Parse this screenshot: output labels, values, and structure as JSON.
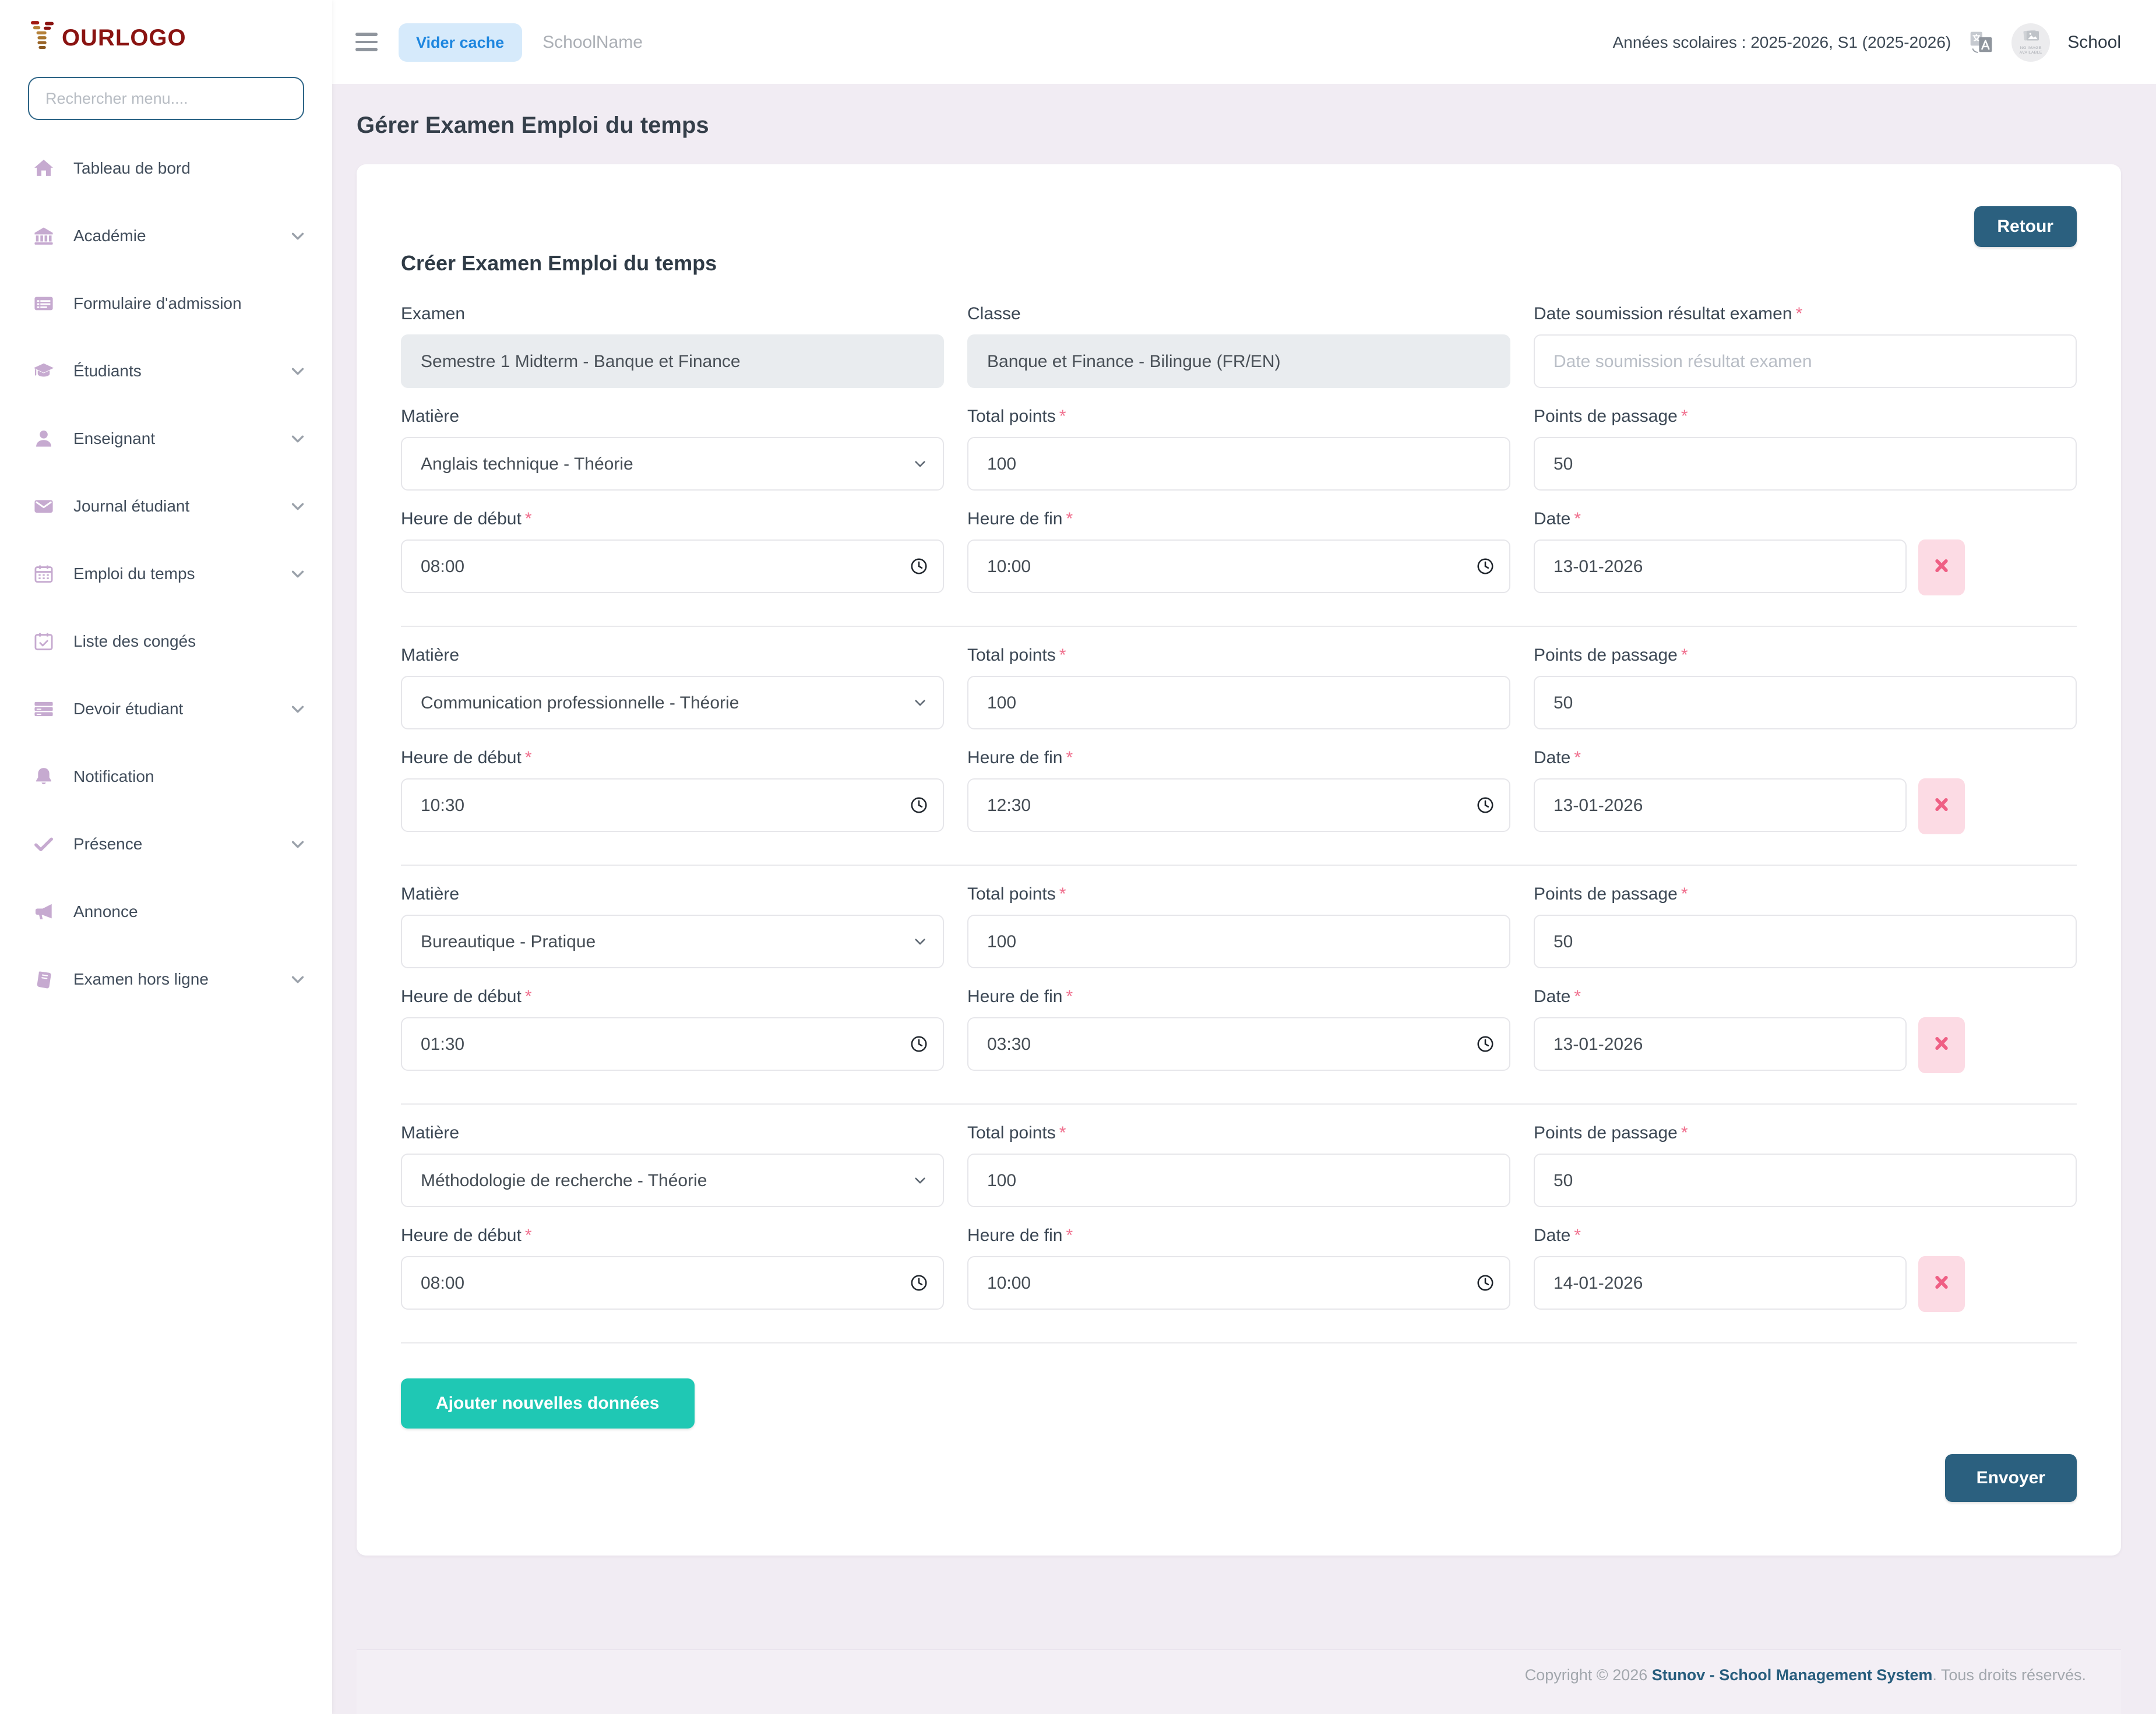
{
  "brand": {
    "logo_text": "OURLOGO"
  },
  "sidebar": {
    "search_placeholder": "Rechercher menu....",
    "items": [
      {
        "id": "dashboard",
        "label": "Tableau de bord",
        "icon": "home-icon",
        "chevron": false
      },
      {
        "id": "academy",
        "label": "Académie",
        "icon": "academy-icon",
        "chevron": true
      },
      {
        "id": "admission-form",
        "label": "Formulaire d'admission",
        "icon": "admission-form-icon",
        "chevron": false
      },
      {
        "id": "students",
        "label": "Étudiants",
        "icon": "students-icon",
        "chevron": true
      },
      {
        "id": "teacher",
        "label": "Enseignant",
        "icon": "teacher-icon",
        "chevron": true
      },
      {
        "id": "student-journal",
        "label": "Journal étudiant",
        "icon": "student-journal-icon",
        "chevron": true
      },
      {
        "id": "timetable",
        "label": "Emploi du temps",
        "icon": "timetable-icon",
        "chevron": true
      },
      {
        "id": "leave-list",
        "label": "Liste des congés",
        "icon": "leave-list-icon",
        "chevron": false
      },
      {
        "id": "student-homework",
        "label": "Devoir étudiant",
        "icon": "student-homework-icon",
        "chevron": true
      },
      {
        "id": "notification",
        "label": "Notification",
        "icon": "notification-icon",
        "chevron": false
      },
      {
        "id": "attendance",
        "label": "Présence",
        "icon": "attendance-icon",
        "chevron": true
      },
      {
        "id": "announcement",
        "label": "Annonce",
        "icon": "announcement-icon",
        "chevron": false
      },
      {
        "id": "offline-exam",
        "label": "Examen hors ligne",
        "icon": "offline-exam-icon",
        "chevron": true
      }
    ]
  },
  "header": {
    "clear_cache_label": "Vider cache",
    "school_name": "SchoolName",
    "school_years": "Années scolaires : 2025-2026, S1 (2025-2026)",
    "avatar_placeholder_line1": "NO IMAGE",
    "avatar_placeholder_line2": "AVAILABLE",
    "profile_label": "School"
  },
  "page": {
    "title": "Gérer Examen Emploi du temps"
  },
  "form": {
    "card_title": "Créer Examen Emploi du temps",
    "back_label": "Retour",
    "required_marker": "*",
    "exam": {
      "label": "Examen",
      "value": "Semestre 1 Midterm - Banque et Finance"
    },
    "classe": {
      "label": "Classe",
      "value": "Banque et Finance - Bilingue (FR/EN)"
    },
    "result_date": {
      "label": "Date soumission résultat examen",
      "placeholder": "Date soumission résultat examen"
    },
    "labels": {
      "matiere": "Matière",
      "total_points": "Total points",
      "passing_points": "Points de passage",
      "start_time": "Heure de début",
      "end_time": "Heure de fin",
      "date": "Date"
    },
    "groups": [
      {
        "matiere": "Anglais technique - Théorie",
        "total_points": "100",
        "passing_points": "50",
        "start_time": "08:00",
        "end_time": "10:00",
        "date": "13-01-2026"
      },
      {
        "matiere": "Communication professionnelle - Théorie",
        "total_points": "100",
        "passing_points": "50",
        "start_time": "10:30",
        "end_time": "12:30",
        "date": "13-01-2026"
      },
      {
        "matiere": "Bureautique - Pratique",
        "total_points": "100",
        "passing_points": "50",
        "start_time": "01:30",
        "end_time": "03:30",
        "date": "13-01-2026"
      },
      {
        "matiere": "Méthodologie de recherche - Théorie",
        "total_points": "100",
        "passing_points": "50",
        "start_time": "08:00",
        "end_time": "10:00",
        "date": "14-01-2026"
      }
    ],
    "add_button_label": "Ajouter nouvelles données",
    "submit_label": "Envoyer"
  },
  "footer": {
    "copyright_prefix": "Copyright © 2026 ",
    "brand": "Stunov - School Management System",
    "suffix": ". Tous droits réservés."
  },
  "colors": {
    "accent_teal": "#1fc8b4",
    "primary_blue": "#2b607f",
    "link_blue": "#1d86df",
    "danger_pink": "#ef5f84",
    "sidebar_icon": "#c6aad0",
    "logo_red": "#8a1311",
    "background": "#f1ecf3"
  }
}
